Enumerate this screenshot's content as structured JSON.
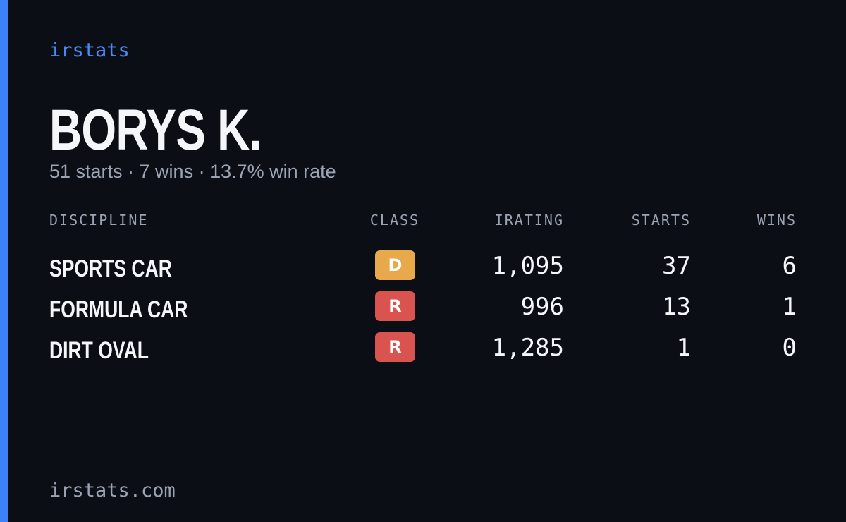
{
  "header": {
    "brand": "irstats",
    "name": "BORYS K.",
    "summary": "51 starts · 7 wins · 13.7% win rate"
  },
  "table": {
    "columns": [
      "DISCIPLINE",
      "CLASS",
      "IRATING",
      "STARTS",
      "WINS"
    ],
    "rows": [
      {
        "discipline": "SPORTS CAR",
        "class": "D",
        "class_color": "#e8a94a",
        "irating": "1,095",
        "starts": 37,
        "wins": 6
      },
      {
        "discipline": "FORMULA CAR",
        "class": "R",
        "class_color": "#d9534f",
        "irating": "996",
        "starts": 13,
        "wins": 1
      },
      {
        "discipline": "DIRT OVAL",
        "class": "R",
        "class_color": "#d9534f",
        "irating": "1,285",
        "starts": 1,
        "wins": 0
      }
    ]
  },
  "footer": {
    "site": "irstats.com"
  }
}
